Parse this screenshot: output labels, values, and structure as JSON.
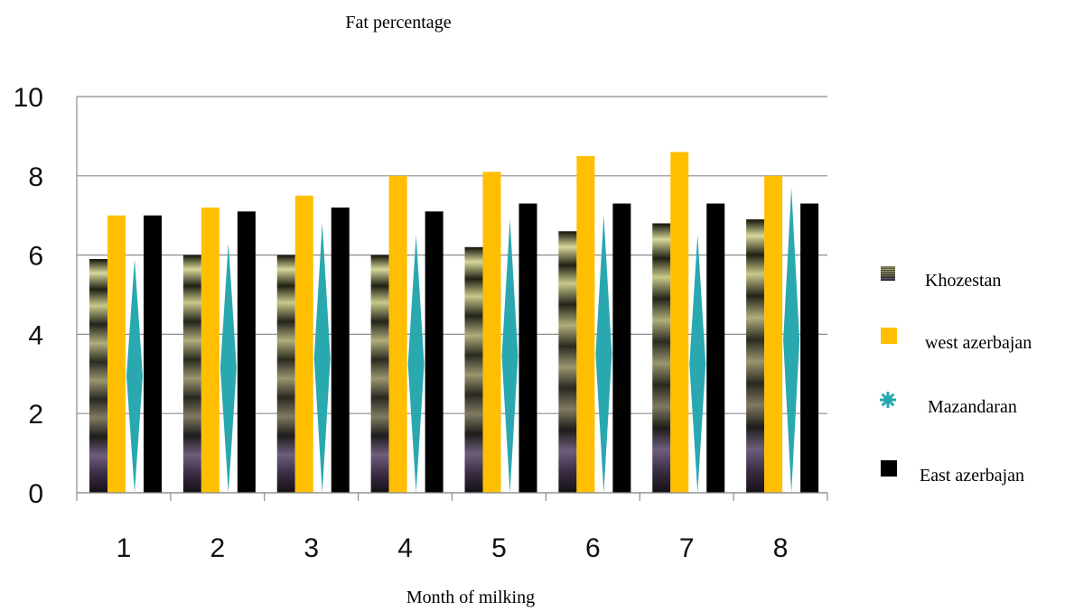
{
  "chart_data": {
    "type": "bar",
    "title": "Fat percentage",
    "xlabel": "Month of milking",
    "ylabel": "",
    "ylim": [
      0,
      10
    ],
    "yticks": [
      0,
      2,
      4,
      6,
      8,
      10
    ],
    "grid": true,
    "legend_position": "right",
    "categories": [
      "1",
      "2",
      "3",
      "4",
      "5",
      "6",
      "7",
      "8"
    ],
    "series": [
      {
        "name": "Khozestan",
        "color": "#6b6b4a",
        "values": [
          5.9,
          6.0,
          6.0,
          6.0,
          6.2,
          6.6,
          6.8,
          6.9
        ]
      },
      {
        "name": "west azerbajan",
        "color": "#ffbf00",
        "values": [
          7.0,
          7.2,
          7.5,
          8.0,
          8.1,
          8.5,
          8.6,
          8.0
        ]
      },
      {
        "name": "Mazandaran",
        "color": "#2aa8b0",
        "values": [
          5.9,
          6.3,
          6.8,
          6.5,
          6.9,
          7.0,
          6.5,
          7.7
        ]
      },
      {
        "name": "East azerbajan",
        "color": "#000000",
        "values": [
          7.0,
          7.1,
          7.2,
          7.1,
          7.3,
          7.3,
          7.3,
          7.3
        ]
      }
    ]
  }
}
